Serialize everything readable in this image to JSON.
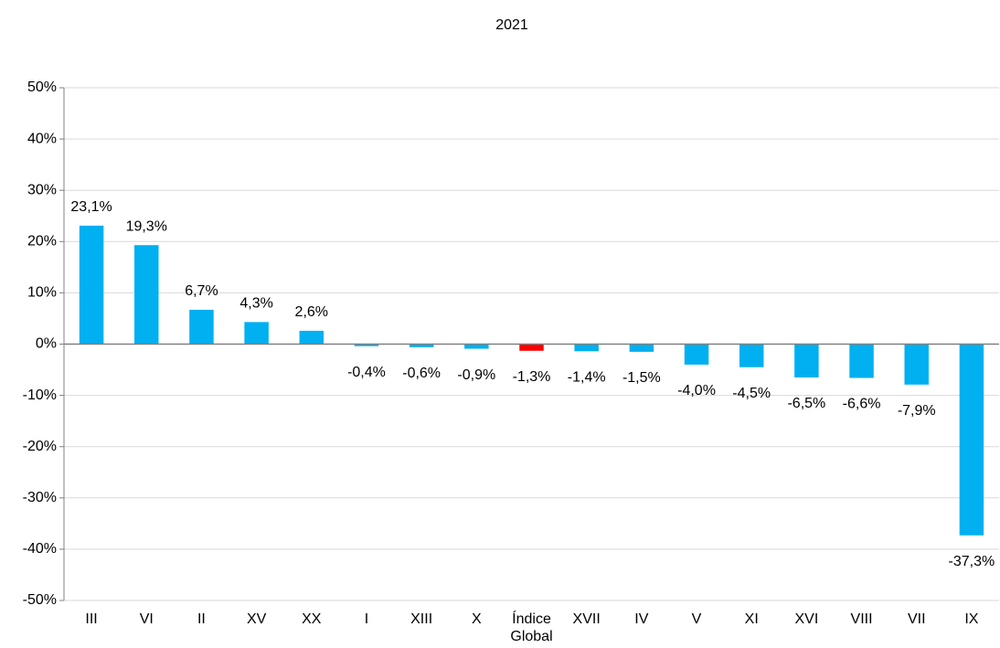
{
  "chart_data": {
    "type": "bar",
    "title": "2021",
    "categories": [
      "III",
      "VI",
      "II",
      "XV",
      "XX",
      "I",
      "XIII",
      "X",
      "Índice Global",
      "XVII",
      "IV",
      "V",
      "XI",
      "XVI",
      "VIII",
      "VII",
      "IX"
    ],
    "values": [
      23.1,
      19.3,
      6.7,
      4.3,
      2.6,
      -0.4,
      -0.6,
      -0.9,
      -1.3,
      -1.4,
      -1.5,
      -4.0,
      -4.5,
      -6.5,
      -6.6,
      -7.9,
      -37.3
    ],
    "value_labels": [
      "23,1%",
      "19,3%",
      "6,7%",
      "4,3%",
      "2,6%",
      "-0,4%",
      "-0,6%",
      "-0,9%",
      "-1,3%",
      "-1,4%",
      "-1,5%",
      "-4,0%",
      "-4,5%",
      "-6,5%",
      "-6,6%",
      "-7,9%",
      "-37,3%"
    ],
    "colors": [
      "#00b0f0",
      "#00b0f0",
      "#00b0f0",
      "#00b0f0",
      "#00b0f0",
      "#00b0f0",
      "#00b0f0",
      "#00b0f0",
      "#ff0000",
      "#00b0f0",
      "#00b0f0",
      "#00b0f0",
      "#00b0f0",
      "#00b0f0",
      "#00b0f0",
      "#00b0f0",
      "#00b0f0"
    ],
    "ylim": [
      -50,
      50
    ],
    "yticks": [
      {
        "value": -50,
        "label": "-50%"
      },
      {
        "value": -40,
        "label": "-40%"
      },
      {
        "value": -30,
        "label": "-30%"
      },
      {
        "value": -20,
        "label": "-20%"
      },
      {
        "value": -10,
        "label": "-10%"
      },
      {
        "value": 0,
        "label": "0%"
      },
      {
        "value": 10,
        "label": "10%"
      },
      {
        "value": 20,
        "label": "20%"
      },
      {
        "value": 30,
        "label": "30%"
      },
      {
        "value": 40,
        "label": "40%"
      },
      {
        "value": 50,
        "label": "50%"
      }
    ],
    "grid": true
  }
}
